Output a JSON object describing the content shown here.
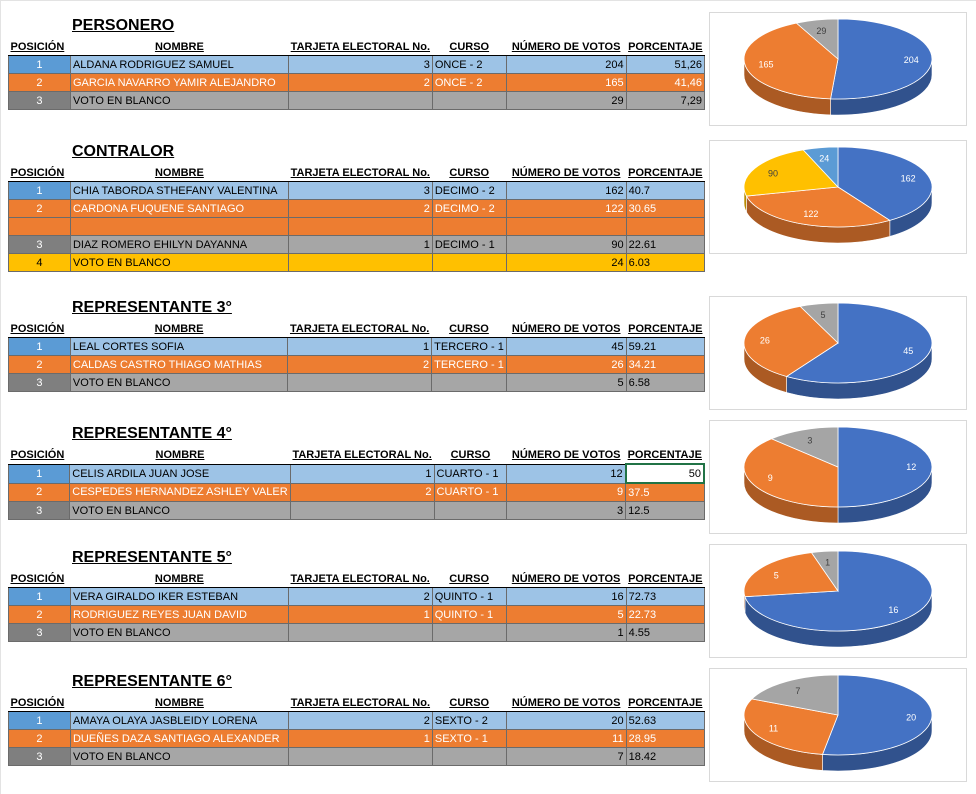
{
  "headers": {
    "posicion": "POSICIÓN",
    "nombre": "NOMBRE",
    "tarjeta": "TARJETA ELECTORAL No.",
    "curso": "CURSO",
    "votos": "NÚMERO DE VOTOS",
    "porcentaje": "PORCENTAJE"
  },
  "colors": {
    "blue": "#4472c4",
    "orange": "#ed7d31",
    "gray": "#a5a5a5",
    "yellow": "#ffc000",
    "selection": "#217346"
  },
  "sections": [
    {
      "title": "PERSONERO",
      "rows": [
        {
          "pos": "1",
          "nombre": "ALDANA RODRIGUEZ SAMUEL",
          "tarjeta": "3",
          "curso": "ONCE - 2",
          "votos": "204",
          "porcentaje": "51,26",
          "color": "blue"
        },
        {
          "pos": "2",
          "nombre": "GARCIA NAVARRO YAMIR ALEJANDRO",
          "tarjeta": "2",
          "curso": "ONCE - 2",
          "votos": "165",
          "porcentaje": "41,46",
          "color": "orange"
        },
        {
          "pos": "3",
          "nombre": "VOTO EN BLANCO",
          "tarjeta": "",
          "curso": "",
          "votos": "29",
          "porcentaje": "7,29",
          "color": "gray"
        }
      ]
    },
    {
      "title": "CONTRALOR",
      "rows": [
        {
          "pos": "1",
          "nombre": "CHIA TABORDA STHEFANY VALENTINA",
          "tarjeta": "3",
          "curso": "DECIMO - 2",
          "votos": "162",
          "porcentaje": "40.7",
          "color": "blue"
        },
        {
          "pos": "2",
          "nombre": "CARDONA FUQUENE SANTIAGO",
          "tarjeta": "2",
          "curso": "DECIMO - 2",
          "votos": "122",
          "porcentaje": "30.65",
          "color": "orange"
        },
        {
          "pos": "",
          "nombre": "",
          "tarjeta": "",
          "curso": "",
          "votos": "",
          "porcentaje": "",
          "color": "orange"
        },
        {
          "pos": "3",
          "nombre": "DIAZ ROMERO EHILYN DAYANNA",
          "tarjeta": "1",
          "curso": "DECIMO - 1",
          "votos": "90",
          "porcentaje": "22.61",
          "color": "gray"
        },
        {
          "pos": "4",
          "nombre": "VOTO EN BLANCO",
          "tarjeta": "",
          "curso": "",
          "votos": "24",
          "porcentaje": "6.03",
          "color": "yellow"
        }
      ]
    },
    {
      "title": "REPRESENTANTE 3°",
      "rows": [
        {
          "pos": "1",
          "nombre": "LEAL CORTES SOFIA",
          "tarjeta": "1",
          "curso": "TERCERO - 1",
          "votos": "45",
          "porcentaje": "59.21",
          "color": "blue"
        },
        {
          "pos": "2",
          "nombre": "CALDAS CASTRO THIAGO MATHIAS",
          "tarjeta": "2",
          "curso": "TERCERO - 1",
          "votos": "26",
          "porcentaje": "34.21",
          "color": "orange"
        },
        {
          "pos": "3",
          "nombre": "VOTO EN BLANCO",
          "tarjeta": "",
          "curso": "",
          "votos": "5",
          "porcentaje": "6.58",
          "color": "gray"
        }
      ]
    },
    {
      "title": "REPRESENTANTE 4°",
      "rows": [
        {
          "pos": "1",
          "nombre": "CELIS ARDILA JUAN JOSE",
          "tarjeta": "1",
          "curso": "CUARTO - 1",
          "votos": "12",
          "porcentaje": "50",
          "color": "blue",
          "selected": true
        },
        {
          "pos": "2",
          "nombre": "CESPEDES HERNANDEZ ASHLEY VALER",
          "tarjeta": "2",
          "curso": "CUARTO - 1",
          "votos": "9",
          "porcentaje": "37.5",
          "color": "orange"
        },
        {
          "pos": "3",
          "nombre": "VOTO EN BLANCO",
          "tarjeta": "",
          "curso": "",
          "votos": "3",
          "porcentaje": "12.5",
          "color": "gray"
        }
      ]
    },
    {
      "title": "REPRESENTANTE 5°",
      "rows": [
        {
          "pos": "1",
          "nombre": "VERA GIRALDO IKER ESTEBAN",
          "tarjeta": "2",
          "curso": "QUINTO - 1",
          "votos": "16",
          "porcentaje": "72.73",
          "color": "blue"
        },
        {
          "pos": "2",
          "nombre": "RODRIGUEZ REYES JUAN DAVID",
          "tarjeta": "1",
          "curso": "QUINTO - 1",
          "votos": "5",
          "porcentaje": "22.73",
          "color": "orange"
        },
        {
          "pos": "3",
          "nombre": "VOTO EN BLANCO",
          "tarjeta": "",
          "curso": "",
          "votos": "1",
          "porcentaje": "4.55",
          "color": "gray"
        }
      ]
    },
    {
      "title": "REPRESENTANTE 6°",
      "rows": [
        {
          "pos": "1",
          "nombre": "AMAYA OLAYA JASBLEIDY LORENA",
          "tarjeta": "2",
          "curso": "SEXTO - 2",
          "votos": "20",
          "porcentaje": "52.63",
          "color": "blue"
        },
        {
          "pos": "2",
          "nombre": "DUEÑES DAZA SANTIAGO ALEXANDER",
          "tarjeta": "1",
          "curso": "SEXTO - 1",
          "votos": "11",
          "porcentaje": "28.95",
          "color": "orange"
        },
        {
          "pos": "3",
          "nombre": "VOTO EN BLANCO",
          "tarjeta": "",
          "curso": "",
          "votos": "7",
          "porcentaje": "18.42",
          "color": "gray"
        }
      ]
    }
  ],
  "chart_data": [
    {
      "type": "pie",
      "title": "",
      "slices": [
        {
          "label": "204",
          "value": 204,
          "color": "blue"
        },
        {
          "label": "165",
          "value": 165,
          "color": "orange"
        },
        {
          "label": "29",
          "value": 29,
          "color": "gray"
        }
      ]
    },
    {
      "type": "pie",
      "title": "",
      "slices": [
        {
          "label": "162",
          "value": 162,
          "color": "blue"
        },
        {
          "label": "122",
          "value": 122,
          "color": "orange"
        },
        {
          "label": "90",
          "value": 90,
          "color": "yellow"
        },
        {
          "label": "24",
          "value": 24,
          "color": "blue-light"
        }
      ]
    },
    {
      "type": "pie",
      "title": "",
      "slices": [
        {
          "label": "45",
          "value": 45,
          "color": "blue"
        },
        {
          "label": "26",
          "value": 26,
          "color": "orange"
        },
        {
          "label": "5",
          "value": 5,
          "color": "gray"
        }
      ]
    },
    {
      "type": "pie",
      "title": "",
      "slices": [
        {
          "label": "12",
          "value": 12,
          "color": "blue"
        },
        {
          "label": "9",
          "value": 9,
          "color": "orange"
        },
        {
          "label": "3",
          "value": 3,
          "color": "gray"
        }
      ]
    },
    {
      "type": "pie",
      "title": "",
      "slices": [
        {
          "label": "16",
          "value": 16,
          "color": "blue"
        },
        {
          "label": "5",
          "value": 5,
          "color": "orange"
        },
        {
          "label": "1",
          "value": 1,
          "color": "gray"
        }
      ]
    },
    {
      "type": "pie",
      "title": "",
      "slices": [
        {
          "label": "20",
          "value": 20,
          "color": "blue"
        },
        {
          "label": "11",
          "value": 11,
          "color": "orange"
        },
        {
          "label": "7",
          "value": 7,
          "color": "gray"
        }
      ]
    }
  ]
}
